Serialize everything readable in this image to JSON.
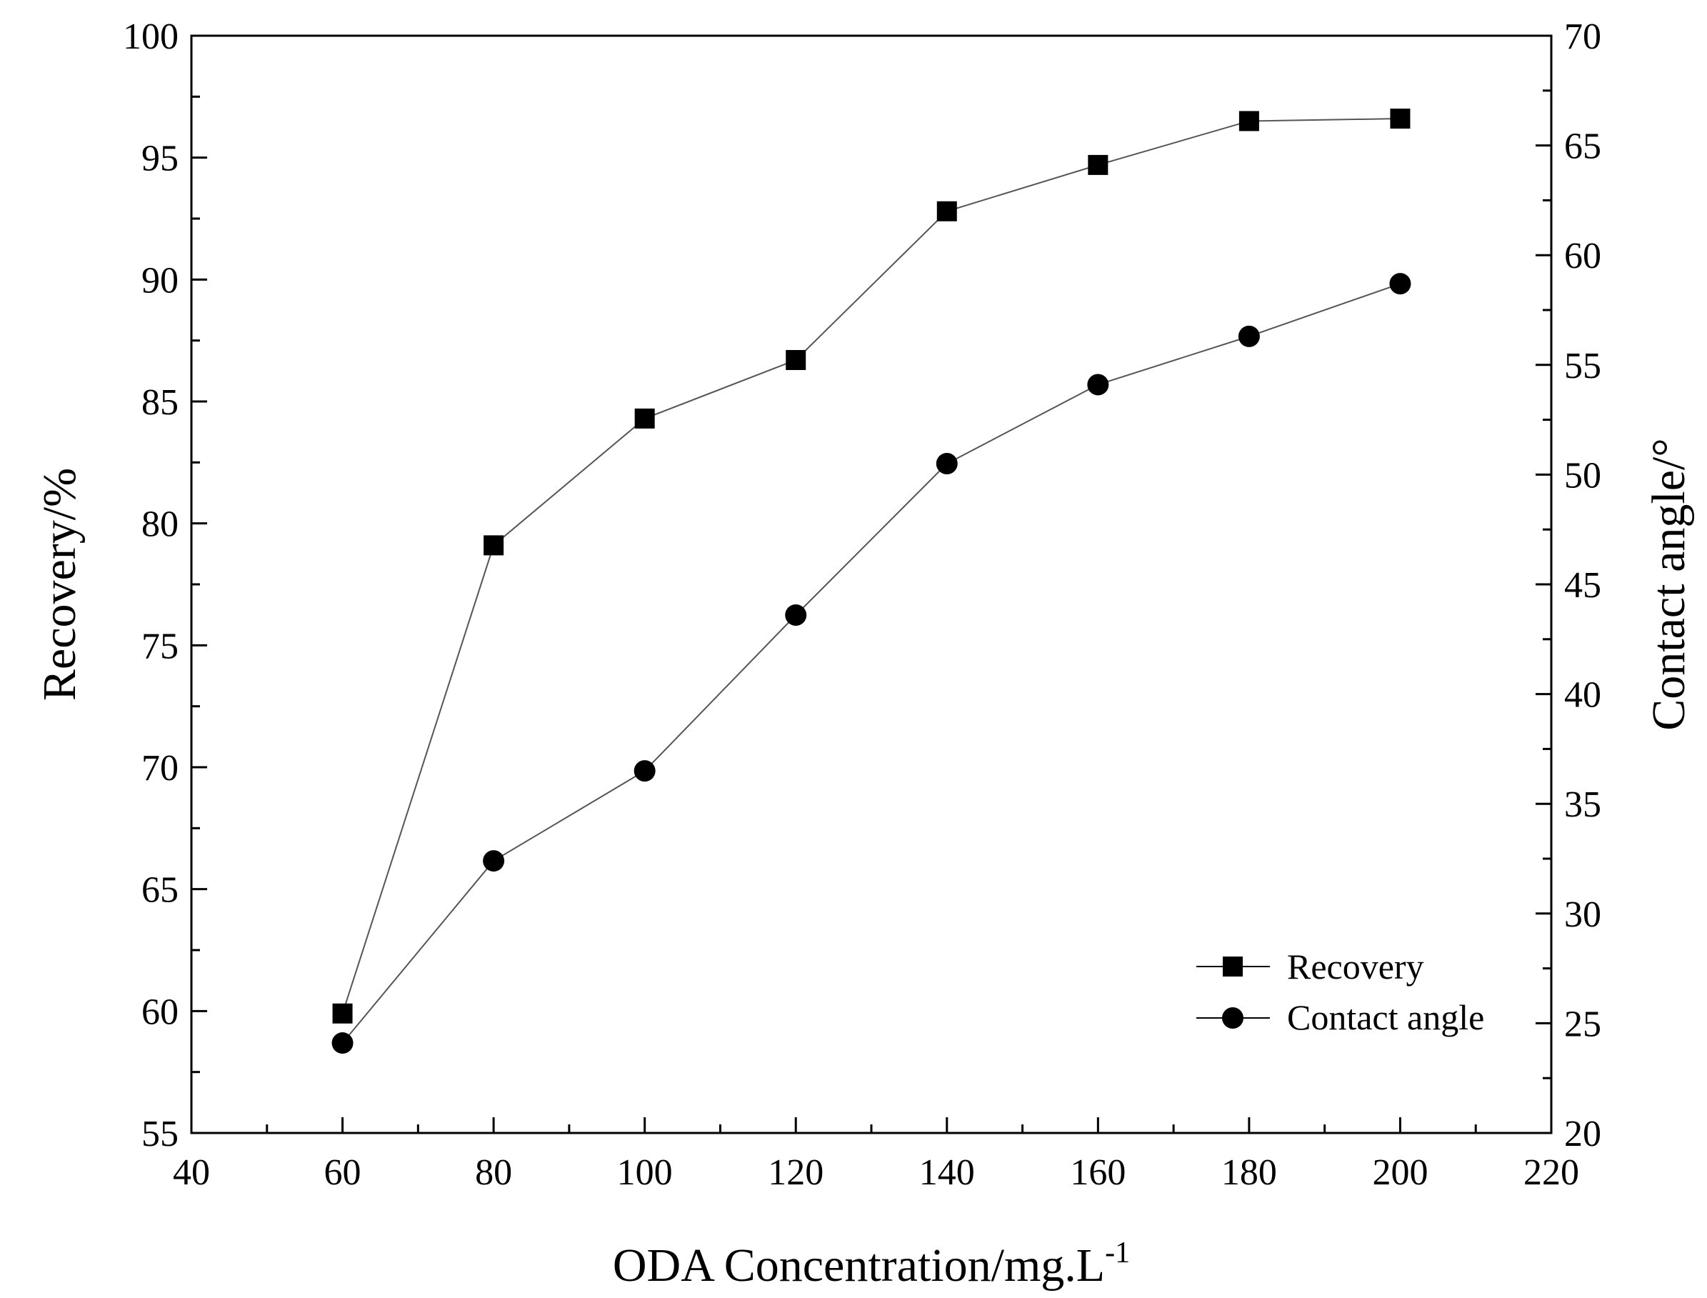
{
  "chart_data": {
    "type": "line",
    "title": "",
    "xlabel": "ODA Concentration/mg.L",
    "xlabel_superscript": "-1",
    "ylabel_left": "Recovery/%",
    "ylabel_right": "Contact angle/°",
    "xlim": [
      40,
      220
    ],
    "ylim_left": [
      55,
      100
    ],
    "ylim_right": [
      20,
      70
    ],
    "x_ticks": [
      "40",
      "60",
      "80",
      "100",
      "120",
      "140",
      "160",
      "180",
      "200",
      "220"
    ],
    "y_left_ticks": [
      "55",
      "60",
      "65",
      "70",
      "75",
      "80",
      "85",
      "90",
      "95",
      "100"
    ],
    "y_right_ticks": [
      "20",
      "25",
      "30",
      "35",
      "40",
      "45",
      "50",
      "55",
      "60",
      "65",
      "70"
    ],
    "x": [
      60,
      80,
      100,
      120,
      140,
      160,
      180,
      200
    ],
    "series": [
      {
        "name": "Recovery",
        "axis": "left",
        "marker": "square",
        "values": [
          59.9,
          79.1,
          84.3,
          86.7,
          92.8,
          94.7,
          96.5,
          96.6
        ]
      },
      {
        "name": "Contact angle",
        "axis": "right",
        "marker": "circle",
        "values": [
          24.1,
          32.4,
          36.5,
          43.6,
          50.5,
          54.1,
          56.3,
          58.7
        ]
      }
    ],
    "legend": {
      "position": "bottom-right",
      "entries": [
        "Recovery",
        "Contact angle"
      ]
    },
    "grid": false
  }
}
